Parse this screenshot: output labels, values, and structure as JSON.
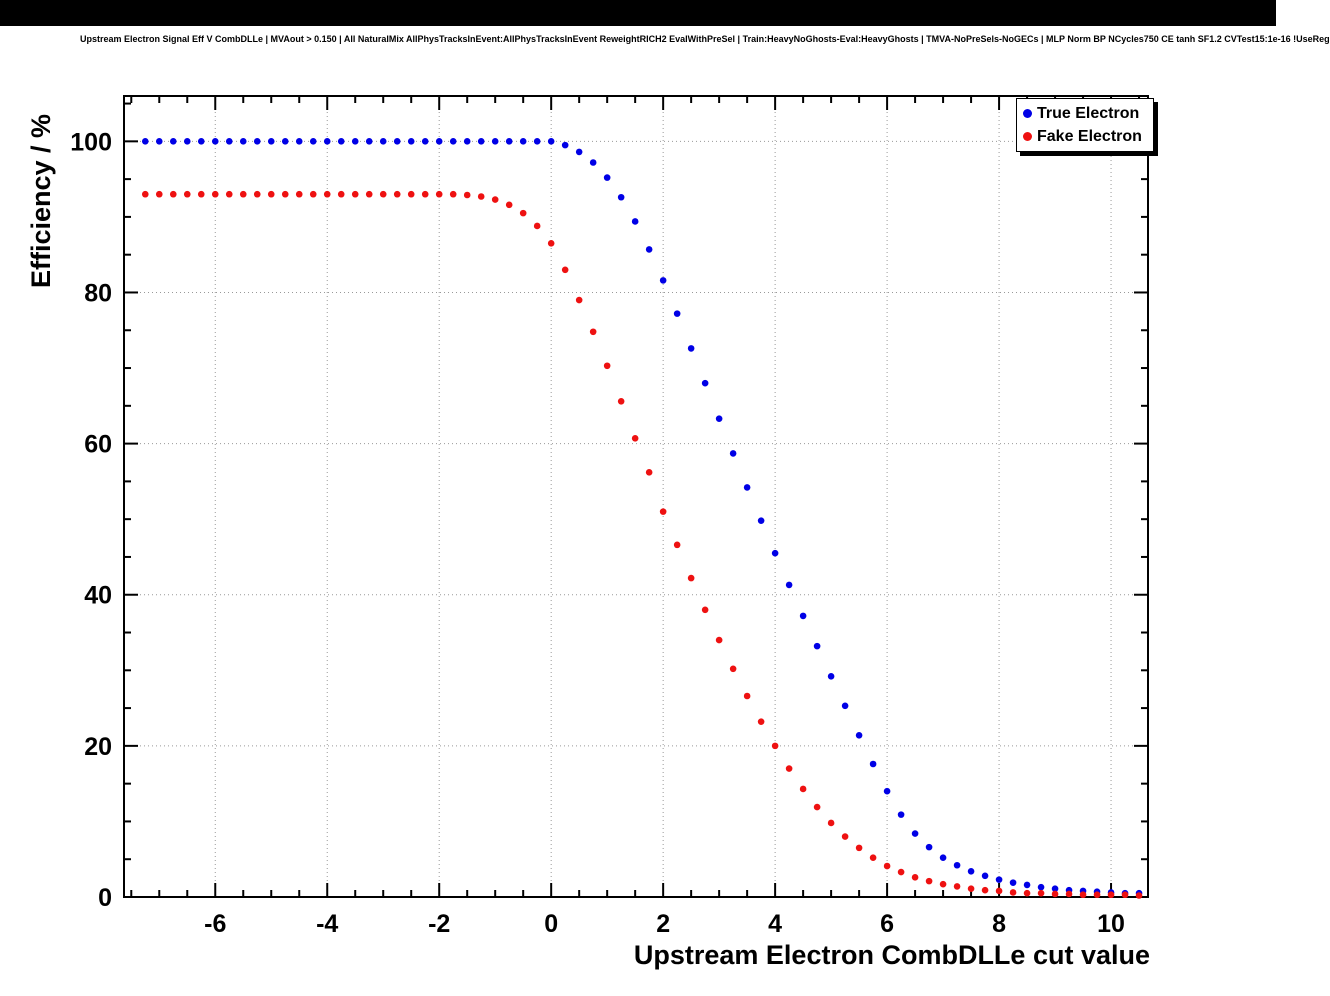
{
  "title": "Upstream Electron Signal Eff V CombDLLe | MVAout > 0.150 | All NaturalMix AllPhysTracksInEvent:AllPhysTracksInEvent ReweightRICH2 EvalWithPreSel | Train:HeavyNoGhosts-Eval:HeavyGhosts | TMVA-NoPreSels-NoGECs | MLP Norm BP NCycles750 CE tanh SF1.2 CVTest15:1e-16 !UseReg",
  "colors": {
    "grid": "#999999",
    "frame": "#000000",
    "background": "#ffffff",
    "topbar": "#000000"
  },
  "chart_data": {
    "type": "scatter",
    "title": "Upstream Electron Signal Eff V CombDLLe",
    "xlabel": "Upstream Electron CombDLLe cut value",
    "ylabel": "Efficiency / %",
    "xlim": [
      -7.63,
      10.66
    ],
    "ylim": [
      0,
      106
    ],
    "x_ticks": [
      -6,
      -4,
      -2,
      0,
      2,
      4,
      6,
      8,
      10
    ],
    "y_ticks": [
      0,
      20,
      40,
      60,
      80,
      100
    ],
    "grid": true,
    "grid_style": "dotted",
    "legend_position": "top-right",
    "marker": "filled-circle",
    "series": [
      {
        "name": "True Electron",
        "color": "#0000e6",
        "x": [
          -7.25,
          -7.0,
          -6.75,
          -6.5,
          -6.25,
          -6.0,
          -5.75,
          -5.5,
          -5.25,
          -5.0,
          -4.75,
          -4.5,
          -4.25,
          -4.0,
          -3.75,
          -3.5,
          -3.25,
          -3.0,
          -2.75,
          -2.5,
          -2.25,
          -2.0,
          -1.75,
          -1.5,
          -1.25,
          -1.0,
          -0.75,
          -0.5,
          -0.25,
          0.0,
          0.25,
          0.5,
          0.75,
          1.0,
          1.25,
          1.5,
          1.75,
          2.0,
          2.25,
          2.5,
          2.75,
          3.0,
          3.25,
          3.5,
          3.75,
          4.0,
          4.25,
          4.5,
          4.75,
          5.0,
          5.25,
          5.5,
          5.75,
          6.0,
          6.25,
          6.5,
          6.75,
          7.0,
          7.25,
          7.5,
          7.75,
          8.0,
          8.25,
          8.5,
          8.75,
          9.0,
          9.25,
          9.5,
          9.75,
          10.0,
          10.25,
          10.5
        ],
        "y": [
          100,
          100,
          100,
          100,
          100,
          100,
          100,
          100,
          100,
          100,
          100,
          100,
          100,
          100,
          100,
          100,
          100,
          100,
          100,
          100,
          100,
          100,
          100,
          100,
          100,
          100,
          100,
          100,
          100,
          100,
          99.5,
          98.6,
          97.2,
          95.2,
          92.6,
          89.4,
          85.7,
          81.6,
          77.2,
          72.6,
          68.0,
          63.3,
          58.7,
          54.2,
          49.8,
          45.5,
          41.3,
          37.2,
          33.2,
          29.2,
          25.3,
          21.4,
          17.6,
          14.0,
          10.9,
          8.4,
          6.6,
          5.2,
          4.2,
          3.4,
          2.8,
          2.3,
          1.9,
          1.6,
          1.3,
          1.1,
          0.9,
          0.8,
          0.7,
          0.6,
          0.5,
          0.5
        ]
      },
      {
        "name": "Fake Electron",
        "color": "#ee1111",
        "x": [
          -7.25,
          -7.0,
          -6.75,
          -6.5,
          -6.25,
          -6.0,
          -5.75,
          -5.5,
          -5.25,
          -5.0,
          -4.75,
          -4.5,
          -4.25,
          -4.0,
          -3.75,
          -3.5,
          -3.25,
          -3.0,
          -2.75,
          -2.5,
          -2.25,
          -2.0,
          -1.75,
          -1.5,
          -1.25,
          -1.0,
          -0.75,
          -0.5,
          -0.25,
          0.0,
          0.25,
          0.5,
          0.75,
          1.0,
          1.25,
          1.5,
          1.75,
          2.0,
          2.25,
          2.5,
          2.75,
          3.0,
          3.25,
          3.5,
          3.75,
          4.0,
          4.25,
          4.5,
          4.75,
          5.0,
          5.25,
          5.5,
          5.75,
          6.0,
          6.25,
          6.5,
          6.75,
          7.0,
          7.25,
          7.5,
          7.75,
          8.0,
          8.25,
          8.5,
          8.75,
          9.0,
          9.25,
          9.5,
          9.75,
          10.0,
          10.25,
          10.5
        ],
        "y": [
          93.0,
          93.0,
          93.0,
          93.0,
          93.0,
          93.0,
          93.0,
          93.0,
          93.0,
          93.0,
          93.0,
          93.0,
          93.0,
          93.0,
          93.0,
          93.0,
          93.0,
          93.0,
          93.0,
          93.0,
          93.0,
          93.0,
          93.0,
          92.9,
          92.7,
          92.3,
          91.6,
          90.5,
          88.8,
          86.5,
          83.0,
          79.0,
          74.8,
          70.3,
          65.6,
          60.7,
          56.2,
          51.0,
          46.6,
          42.2,
          38.0,
          34.0,
          30.2,
          26.6,
          23.2,
          20.0,
          17.0,
          14.3,
          11.9,
          9.8,
          8.0,
          6.5,
          5.2,
          4.1,
          3.3,
          2.6,
          2.1,
          1.7,
          1.4,
          1.1,
          0.9,
          0.8,
          0.6,
          0.5,
          0.5,
          0.4,
          0.4,
          0.3,
          0.3,
          0.3,
          0.3,
          0.2
        ]
      }
    ]
  }
}
